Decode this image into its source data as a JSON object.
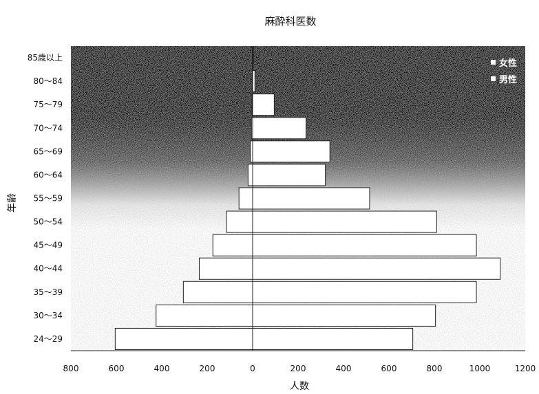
{
  "chart_data": {
    "type": "bar",
    "orientation": "horizontal",
    "layout": "population-pyramid",
    "title": "麻酔科医数",
    "xlabel": "人数",
    "ylabel": "年齢",
    "xlim": [
      -800,
      1200
    ],
    "x_ticks": [
      -800,
      -600,
      -400,
      -200,
      0,
      200,
      400,
      600,
      800,
      1000,
      1200
    ],
    "x_tick_labels": [
      "800",
      "600",
      "400",
      "200",
      "0",
      "200",
      "400",
      "600",
      "800",
      "1000",
      "1200"
    ],
    "categories": [
      "24～29",
      "30～34",
      "35～39",
      "40～44",
      "45～49",
      "50～54",
      "55～59",
      "60～64",
      "65～69",
      "70～74",
      "75～79",
      "80～84",
      "85歳以上"
    ],
    "series": [
      {
        "name": "女性",
        "side": "left",
        "values": [
          605,
          425,
          305,
          235,
          175,
          115,
          60,
          20,
          10,
          5,
          3,
          2,
          1
        ]
      },
      {
        "name": "男性",
        "side": "right",
        "values": [
          705,
          805,
          985,
          1090,
          985,
          810,
          515,
          320,
          340,
          235,
          95,
          10,
          2
        ]
      }
    ],
    "legend": {
      "position": "top-right",
      "entries": [
        "女性",
        "男性"
      ]
    },
    "grid": false,
    "colors": {
      "bar_fill": "#ffffff",
      "bar_stroke": "#222222",
      "background_top": "#000000",
      "background_bottom": "#ffffff"
    }
  }
}
